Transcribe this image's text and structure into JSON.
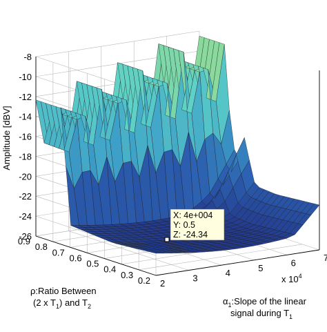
{
  "chart_data": {
    "type": "surface3d",
    "title": "",
    "zlabel": "Amplitude [dBV]",
    "xlabel_line1": "α",
    "xlabel_sub": "1",
    "xlabel_rest": ":Slope of the linear",
    "xlabel_line2_a": "signal during T",
    "xlabel_line2_sub": "1",
    "x_multiplier": "x 10",
    "x_multiplier_exp": "4",
    "ylabel_line1": "ρ:Ratio Between",
    "ylabel_line2_a": "(2 x T",
    "ylabel_line2_sub": "1",
    "ylabel_line2_b": ") and T",
    "ylabel_line2_sub2": "2",
    "x_ticks": [
      "2",
      "3",
      "4",
      "5",
      "6",
      "7"
    ],
    "y_ticks": [
      "0.2",
      "0.3",
      "0.4",
      "0.5",
      "0.6",
      "0.7",
      "0.8",
      "0.9"
    ],
    "z_ticks": [
      "-26",
      "-24",
      "-22",
      "-20",
      "-18",
      "-16",
      "-14",
      "-12",
      "-10",
      "-8"
    ],
    "xlim": [
      2,
      7
    ],
    "ylim": [
      0.2,
      0.9
    ],
    "zlim": [
      -26,
      -8
    ],
    "grid": true,
    "colormap": [
      "#23388a",
      "#2c5fb0",
      "#3ea0c8",
      "#5cd0c8",
      "#c8e864"
    ],
    "datatip": {
      "x_text": "X: 4e+004",
      "y_text": "Y: 0.5",
      "z_text": "Z: -24.34",
      "x": 4,
      "y": 0.5,
      "z": -24.34
    },
    "surface": {
      "description_free": true,
      "grid_x_count": 20,
      "grid_y_count": 24,
      "base_level": -23.5,
      "ridge_y_start": 0.7,
      "ridge_peak_range": [
        -14,
        -8.5
      ]
    }
  }
}
